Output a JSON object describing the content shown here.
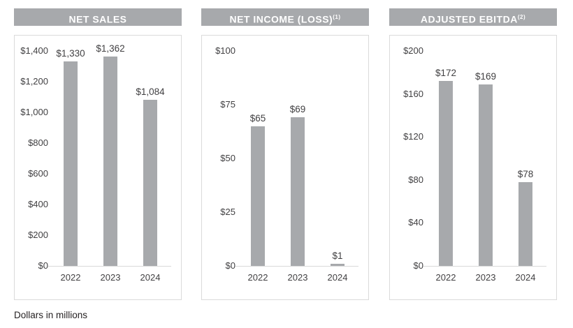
{
  "page": {
    "footnote": "Dollars in millions"
  },
  "colors": {
    "bar": "#a7a9ac",
    "header_bg": "#a7a9ac",
    "header_text": "#ffffff",
    "axis_text": "#414042",
    "box_border": "#dadada",
    "axis_line": "#d9d9d9",
    "footnote_text": "#231f20"
  },
  "chart_data": [
    {
      "type": "bar",
      "title": "NET SALES",
      "title_superscript": "",
      "categories": [
        "2022",
        "2023",
        "2024"
      ],
      "values": [
        1330,
        1362,
        1084
      ],
      "value_labels": [
        "$1,330",
        "$1,362",
        "$1,084"
      ],
      "ylim": [
        0,
        1400
      ],
      "yticks": [
        0,
        200,
        400,
        600,
        800,
        1000,
        1200,
        1400
      ],
      "ytick_labels": [
        "$0",
        "$200",
        "$400",
        "$600",
        "$800",
        "$1,000",
        "$1,200",
        "$1,400"
      ],
      "xlabel": "",
      "ylabel": "",
      "grid": false,
      "legend": "none"
    },
    {
      "type": "bar",
      "title": "NET INCOME (LOSS)",
      "title_superscript": "(1)",
      "categories": [
        "2022",
        "2023",
        "2024"
      ],
      "values": [
        65,
        69,
        1
      ],
      "value_labels": [
        "$65",
        "$69",
        "$1"
      ],
      "ylim": [
        0,
        100
      ],
      "yticks": [
        0,
        25,
        50,
        75,
        100
      ],
      "ytick_labels": [
        "$0",
        "$25",
        "$50",
        "$75",
        "$100"
      ],
      "xlabel": "",
      "ylabel": "",
      "grid": false,
      "legend": "none"
    },
    {
      "type": "bar",
      "title": "ADJUSTED EBITDA",
      "title_superscript": "(2)",
      "categories": [
        "2022",
        "2023",
        "2024"
      ],
      "values": [
        172,
        169,
        78
      ],
      "value_labels": [
        "$172",
        "$169",
        "$78"
      ],
      "ylim": [
        0,
        200
      ],
      "yticks": [
        0,
        40,
        80,
        120,
        160,
        200
      ],
      "ytick_labels": [
        "$0",
        "$40",
        "$80",
        "$120",
        "$160",
        "$200"
      ],
      "xlabel": "",
      "ylabel": "",
      "grid": false,
      "legend": "none"
    }
  ]
}
